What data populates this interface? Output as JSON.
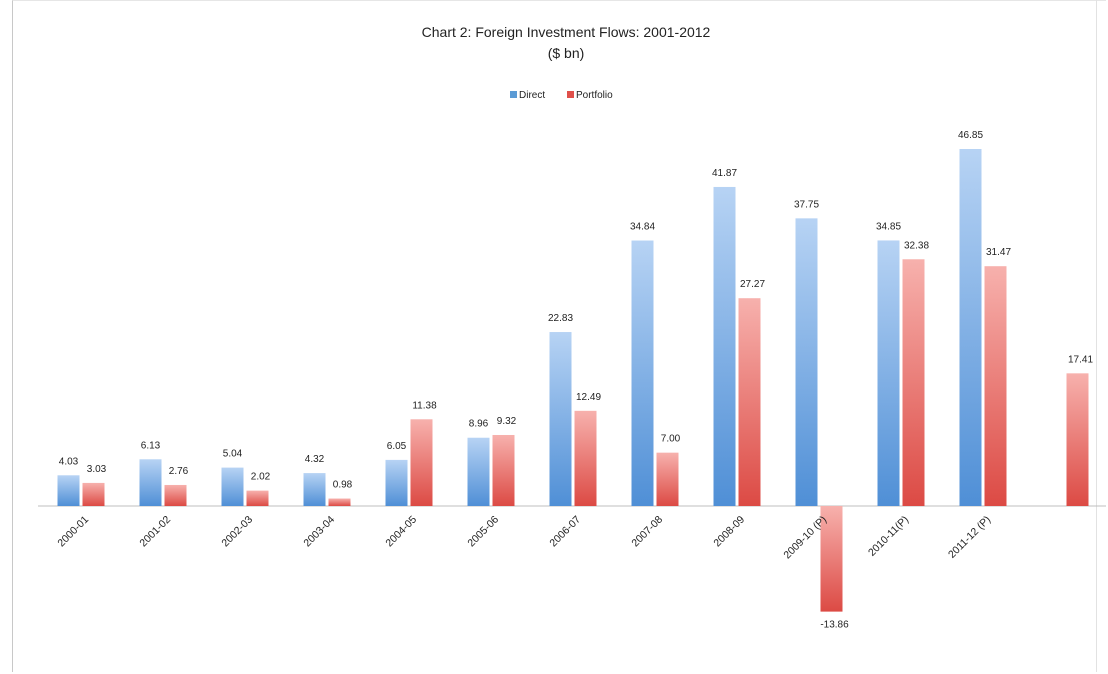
{
  "chart_data": {
    "type": "bar",
    "title": "Chart 2: Foreign Investment Flows: 2001-2012",
    "subtitle": "($ bn)",
    "categories": [
      "2000-01",
      "2001-02",
      "2002-03",
      "2003-04",
      "2004-05",
      "2005-06",
      "2006-07",
      "2007-08",
      "2008-09",
      "2009-10 (P)",
      "2010-11(P)",
      "2011-12 (P)",
      ""
    ],
    "series": [
      {
        "name": "Direct",
        "color": "#5b9bd5",
        "values": [
          4.03,
          6.13,
          5.04,
          4.32,
          6.05,
          8.96,
          22.83,
          34.84,
          41.87,
          37.75,
          34.85,
          46.85,
          null
        ],
        "labels": [
          "4.03",
          "6.13",
          "5.04",
          "4.32",
          "6.05",
          "8.96",
          "22.83",
          "34.84",
          "41.87",
          "37.75",
          "34.85",
          "46.85",
          ""
        ]
      },
      {
        "name": "Portfolio",
        "color": "#e0504a",
        "values": [
          3.03,
          2.76,
          2.02,
          0.98,
          11.38,
          9.32,
          12.49,
          7.0,
          27.27,
          -13.86,
          32.38,
          31.47,
          17.41
        ],
        "labels": [
          "3.03",
          "2.76",
          "2.02",
          "0.98",
          "11.38",
          "9.32",
          "12.49",
          "7.00",
          "27.27",
          "-13.86",
          "32.38",
          "31.47",
          "17.41"
        ]
      }
    ],
    "legend_position": "top-center",
    "grid": false,
    "xlabel": "",
    "ylabel": ""
  }
}
